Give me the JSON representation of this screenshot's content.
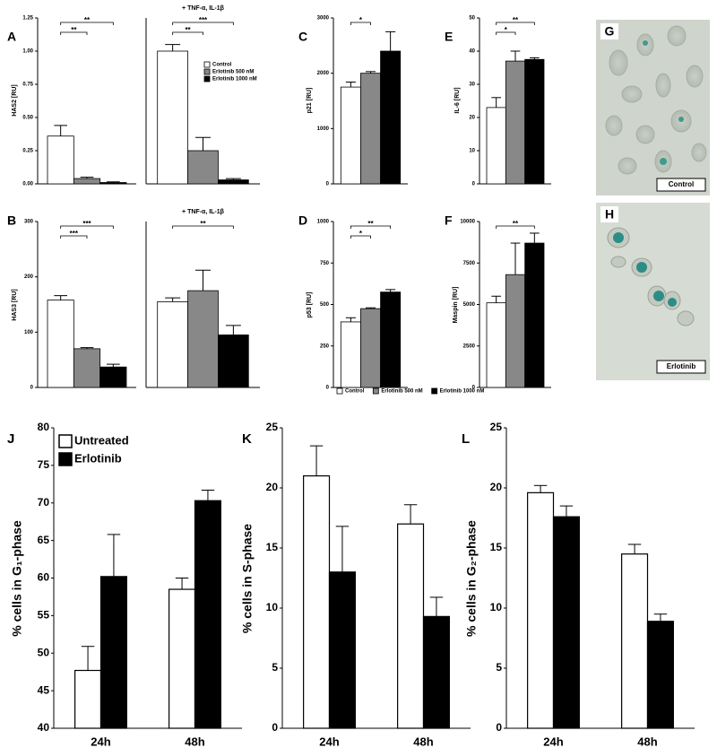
{
  "chart_data": [
    {
      "type": "bar",
      "panel": "A",
      "ylabel": "HAS2 [RU]",
      "categories": [
        null,
        "+ TNF-α, IL-1β"
      ],
      "ylim": [
        0,
        1.25
      ],
      "yticks": [
        {
          "value": 0,
          "label": "0.00"
        },
        {
          "value": 0.25,
          "label": "0.25"
        },
        {
          "value": 0.5,
          "label": "0.50"
        },
        {
          "value": 0.75,
          "label": "0.75"
        },
        {
          "value": 1,
          "label": "1.00"
        },
        {
          "value": 1.25,
          "label": "1.25"
        }
      ],
      "series": [
        {
          "name": "Control",
          "color": "#ffffff",
          "values": [
            0.36,
            1.0
          ],
          "errors": [
            0.08,
            0.05
          ]
        },
        {
          "name": "Erlotinib 500 nM",
          "color": "#888888",
          "values": [
            0.04,
            0.25
          ],
          "errors": [
            0.01,
            0.1
          ]
        },
        {
          "name": "Erlotinib 1000 nM",
          "color": "#000000",
          "values": [
            0.01,
            0.03
          ],
          "errors": [
            0.005,
            0.01
          ]
        }
      ],
      "annotations": [
        {
          "text": "**",
          "category": 0,
          "from": 0,
          "to": 2
        },
        {
          "text": "**",
          "category": 0,
          "from": 0,
          "to": 1
        },
        {
          "text": "***",
          "category": 1,
          "from": 0,
          "to": 2
        },
        {
          "text": "**",
          "category": 1,
          "from": 0,
          "to": 1
        }
      ]
    },
    {
      "type": "bar",
      "panel": "B",
      "ylabel": "HAS3 [RU]",
      "categories": [
        null,
        "+ TNF-α, IL-1β"
      ],
      "ylim": [
        0,
        300
      ],
      "yticks": [
        0,
        100,
        200,
        300
      ],
      "series": [
        {
          "color": "#ffffff",
          "values": [
            158,
            155
          ],
          "errors": [
            8,
            7
          ]
        },
        {
          "color": "#888888",
          "values": [
            70,
            175
          ],
          "errors": [
            2,
            37
          ]
        },
        {
          "color": "#000000",
          "values": [
            37,
            95
          ],
          "errors": [
            5,
            17
          ]
        }
      ],
      "annotations": [
        {
          "text": "***",
          "category": 0,
          "from": 0,
          "to": 2
        },
        {
          "text": "***",
          "category": 0,
          "from": 0,
          "to": 1
        },
        {
          "text": "**",
          "category": 1,
          "from": 0,
          "to": 2
        }
      ]
    },
    {
      "type": "bar",
      "panel": "C",
      "ylabel": "p21 [RU]",
      "ylim": [
        0,
        3000
      ],
      "yticks": [
        0,
        1000,
        2000,
        3000
      ],
      "series": [
        {
          "name": "Control",
          "color": "#ffffff",
          "values": [
            1750
          ],
          "errors": [
            90
          ]
        },
        {
          "name": "Erlotinib 500 nM",
          "color": "#888888",
          "values": [
            2000
          ],
          "errors": [
            30
          ]
        },
        {
          "name": "Erlotinib 1000 nM",
          "color": "#000000",
          "values": [
            2400
          ],
          "errors": [
            350
          ]
        }
      ],
      "annotations": [
        {
          "text": "*",
          "category": 0,
          "from": 0,
          "to": 1
        }
      ]
    },
    {
      "type": "bar",
      "panel": "D",
      "ylabel": "p53 [RU]",
      "ylim": [
        0,
        1000
      ],
      "yticks": [
        0,
        250,
        500,
        750,
        1000
      ],
      "series": [
        {
          "color": "#ffffff",
          "values": [
            395
          ],
          "errors": [
            25
          ]
        },
        {
          "color": "#888888",
          "values": [
            475
          ],
          "errors": [
            5
          ]
        },
        {
          "color": "#000000",
          "values": [
            575
          ],
          "errors": [
            15
          ]
        }
      ],
      "annotations": [
        {
          "text": "**",
          "category": 0,
          "from": 0,
          "to": 2
        },
        {
          "text": "*",
          "category": 0,
          "from": 0,
          "to": 1
        }
      ]
    },
    {
      "type": "bar",
      "panel": "E",
      "ylabel": "IL-6 [RU]",
      "ylim": [
        0,
        50
      ],
      "yticks": [
        0,
        10,
        20,
        30,
        40,
        50
      ],
      "series": [
        {
          "color": "#ffffff",
          "values": [
            23
          ],
          "errors": [
            3
          ]
        },
        {
          "color": "#888888",
          "values": [
            37
          ],
          "errors": [
            3
          ]
        },
        {
          "color": "#000000",
          "values": [
            37.5
          ],
          "errors": [
            0.5
          ]
        }
      ],
      "annotations": [
        {
          "text": "**",
          "category": 0,
          "from": 0,
          "to": 2
        },
        {
          "text": "*",
          "category": 0,
          "from": 0,
          "to": 1
        }
      ]
    },
    {
      "type": "bar",
      "panel": "F",
      "ylabel": "Maspin [RU]",
      "ylim": [
        0,
        10000
      ],
      "yticks": [
        0,
        2500,
        5000,
        7500,
        10000
      ],
      "series": [
        {
          "color": "#ffffff",
          "values": [
            5100
          ],
          "errors": [
            400
          ]
        },
        {
          "color": "#888888",
          "values": [
            6800
          ],
          "errors": [
            1900
          ]
        },
        {
          "color": "#000000",
          "values": [
            8700
          ],
          "errors": [
            600
          ]
        }
      ],
      "annotations": [
        {
          "text": "**",
          "category": 0,
          "from": 0,
          "to": 2
        }
      ]
    },
    {
      "type": "bar",
      "panel": "J",
      "ylabel": "% cells in G₁-phase",
      "categories": [
        "24h",
        "48h"
      ],
      "ylim": [
        40,
        80
      ],
      "yticks": [
        40,
        45,
        50,
        55,
        60,
        65,
        70,
        75,
        80
      ],
      "series": [
        {
          "name": "Untreated",
          "color": "#ffffff",
          "values": [
            47.7,
            58.5
          ],
          "errors": [
            3.2,
            1.5
          ]
        },
        {
          "name": "Erlotinib",
          "color": "#000000",
          "values": [
            60.2,
            70.3
          ],
          "errors": [
            5.6,
            1.4
          ]
        }
      ]
    },
    {
      "type": "bar",
      "panel": "K",
      "ylabel": "% cells in S-phase",
      "categories": [
        "24h",
        "48h"
      ],
      "ylim": [
        0,
        25
      ],
      "yticks": [
        0,
        5,
        10,
        15,
        20,
        25
      ],
      "series": [
        {
          "color": "#ffffff",
          "values": [
            21,
            17
          ],
          "errors": [
            2.5,
            1.6
          ]
        },
        {
          "color": "#000000",
          "values": [
            13,
            9.3
          ],
          "errors": [
            3.8,
            1.6
          ]
        }
      ]
    },
    {
      "type": "bar",
      "panel": "L",
      "ylabel": "% cells in G₂-phase",
      "categories": [
        "24h",
        "48h"
      ],
      "ylim": [
        0,
        25
      ],
      "yticks": [
        0,
        5,
        10,
        15,
        20,
        25
      ],
      "series": [
        {
          "color": "#ffffff",
          "values": [
            19.6,
            14.5
          ],
          "errors": [
            0.6,
            0.8
          ]
        },
        {
          "color": "#000000",
          "values": [
            17.6,
            8.9
          ],
          "errors": [
            0.9,
            0.6
          ]
        }
      ]
    }
  ],
  "images": [
    {
      "panel": "G",
      "label": "Control"
    },
    {
      "panel": "H",
      "label": "Erlotinib"
    }
  ]
}
